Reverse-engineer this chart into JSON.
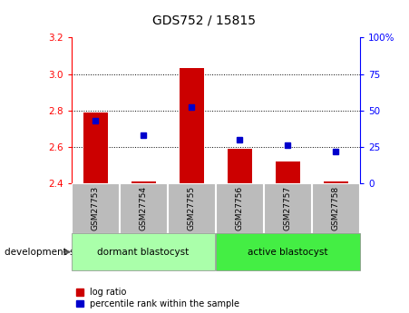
{
  "title": "GDS752 / 15815",
  "samples": [
    "GSM27753",
    "GSM27754",
    "GSM27755",
    "GSM27756",
    "GSM27757",
    "GSM27758"
  ],
  "log_ratios": [
    2.79,
    2.41,
    3.03,
    2.59,
    2.52,
    2.41
  ],
  "percentile_ranks": [
    43,
    33,
    52,
    30,
    26,
    22
  ],
  "log_ratio_base": 2.4,
  "ylim_left": [
    2.4,
    3.2
  ],
  "ylim_right": [
    0,
    100
  ],
  "yticks_left": [
    2.4,
    2.6,
    2.8,
    3.0,
    3.2
  ],
  "yticks_right": [
    0,
    25,
    50,
    75,
    100
  ],
  "bar_color": "#cc0000",
  "dot_color": "#0000cc",
  "group1_label": "dormant blastocyst",
  "group2_label": "active blastocyst",
  "group1_color": "#aaffaa",
  "group2_color": "#44ee44",
  "xlabel_stage": "development stage",
  "legend_bar": "log ratio",
  "legend_dot": "percentile rank within the sample",
  "bg_plot": "#ffffff",
  "bg_xtick": "#bbbbbb",
  "title_fontsize": 10,
  "tick_fontsize": 7.5,
  "sample_fontsize": 6.5
}
